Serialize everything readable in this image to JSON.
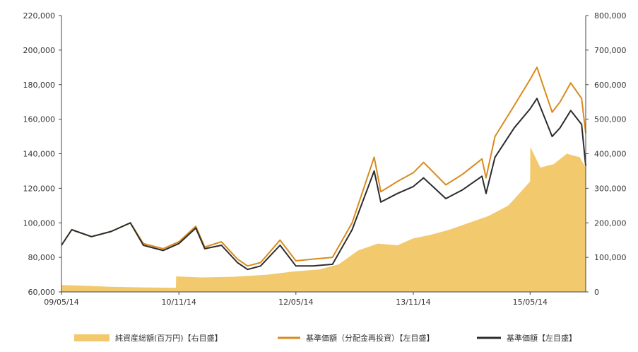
{
  "chart_data": {
    "type": "line",
    "x_tick_labels": [
      "09/05/14",
      "10/11/14",
      "12/05/14",
      "13/11/14",
      "15/05/14"
    ],
    "x_tick_dates": [
      "2009-05-14",
      "2010-11-14",
      "2012-05-14",
      "2013-11-14",
      "2015-05-14"
    ],
    "x_range": [
      "2009-05-14",
      "2016-01-29"
    ],
    "y_left_range": [
      60000,
      220000
    ],
    "y_left_ticks": [
      "60,000",
      "80,000",
      "100,000",
      "120,000",
      "140,000",
      "160,000",
      "180,000",
      "200,000",
      "220,000"
    ],
    "y_right_range": [
      0,
      800000
    ],
    "y_right_ticks": [
      "0",
      "100,000",
      "200,000",
      "300,000",
      "400,000",
      "500,000",
      "600,000",
      "700,000",
      "800,000"
    ],
    "grid": false,
    "legend_position": "bottom",
    "series": [
      {
        "name": "純資産総額(百万円)【右目盛】",
        "type": "area",
        "axis": "right",
        "color": "#f3c96e",
        "points": [
          [
            "2009-05-14",
            20000
          ],
          [
            "2009-09-01",
            18000
          ],
          [
            "2010-01-01",
            15000
          ],
          [
            "2010-06-01",
            13000
          ],
          [
            "2010-10-31",
            12000
          ],
          [
            "2010-11-01",
            45000
          ],
          [
            "2011-03-01",
            42000
          ],
          [
            "2011-08-01",
            44000
          ],
          [
            "2012-01-01",
            50000
          ],
          [
            "2012-05-14",
            60000
          ],
          [
            "2012-09-01",
            65000
          ],
          [
            "2012-12-01",
            80000
          ],
          [
            "2013-03-01",
            120000
          ],
          [
            "2013-06-01",
            140000
          ],
          [
            "2013-09-01",
            135000
          ],
          [
            "2013-11-14",
            155000
          ],
          [
            "2014-02-01",
            165000
          ],
          [
            "2014-05-01",
            180000
          ],
          [
            "2014-08-01",
            200000
          ],
          [
            "2014-11-01",
            220000
          ],
          [
            "2015-02-01",
            250000
          ],
          [
            "2015-04-01",
            290000
          ],
          [
            "2015-05-14",
            320000
          ],
          [
            "2015-05-15",
            420000
          ],
          [
            "2015-07-01",
            360000
          ],
          [
            "2015-09-01",
            370000
          ],
          [
            "2015-11-01",
            400000
          ],
          [
            "2016-01-01",
            390000
          ],
          [
            "2016-01-29",
            360000
          ]
        ]
      },
      {
        "name": "基準価額（分配金再投資）【左目盛】",
        "type": "line",
        "axis": "left",
        "color": "#d98a1c",
        "points": [
          [
            "2009-05-14",
            87000
          ],
          [
            "2009-07-01",
            96000
          ],
          [
            "2009-10-01",
            92000
          ],
          [
            "2010-01-01",
            95000
          ],
          [
            "2010-04-01",
            100000
          ],
          [
            "2010-06-01",
            88000
          ],
          [
            "2010-09-01",
            85000
          ],
          [
            "2010-11-14",
            89000
          ],
          [
            "2011-02-01",
            98000
          ],
          [
            "2011-03-15",
            86000
          ],
          [
            "2011-06-01",
            89000
          ],
          [
            "2011-08-15",
            79000
          ],
          [
            "2011-10-01",
            75000
          ],
          [
            "2011-12-01",
            77000
          ],
          [
            "2012-03-01",
            90000
          ],
          [
            "2012-05-14",
            78000
          ],
          [
            "2012-08-01",
            79000
          ],
          [
            "2012-11-01",
            80000
          ],
          [
            "2013-02-01",
            100000
          ],
          [
            "2013-05-15",
            138000
          ],
          [
            "2013-06-15",
            118000
          ],
          [
            "2013-09-01",
            124000
          ],
          [
            "2013-11-14",
            129000
          ],
          [
            "2014-01-01",
            135000
          ],
          [
            "2014-04-15",
            122000
          ],
          [
            "2014-07-01",
            128000
          ],
          [
            "2014-10-01",
            137000
          ],
          [
            "2014-10-20",
            126000
          ],
          [
            "2014-12-01",
            150000
          ],
          [
            "2015-03-01",
            168000
          ],
          [
            "2015-05-14",
            183000
          ],
          [
            "2015-06-15",
            190000
          ],
          [
            "2015-08-25",
            164000
          ],
          [
            "2015-10-01",
            170000
          ],
          [
            "2015-11-20",
            181000
          ],
          [
            "2016-01-10",
            172000
          ],
          [
            "2016-01-29",
            152000
          ]
        ]
      },
      {
        "name": "基準価額【左目盛】",
        "type": "line",
        "axis": "left",
        "color": "#2c2c2c",
        "points": [
          [
            "2009-05-14",
            87000
          ],
          [
            "2009-07-01",
            96000
          ],
          [
            "2009-10-01",
            92000
          ],
          [
            "2010-01-01",
            95000
          ],
          [
            "2010-04-01",
            100000
          ],
          [
            "2010-06-01",
            87000
          ],
          [
            "2010-09-01",
            84000
          ],
          [
            "2010-11-14",
            88000
          ],
          [
            "2011-02-01",
            97000
          ],
          [
            "2011-03-15",
            85000
          ],
          [
            "2011-06-01",
            87000
          ],
          [
            "2011-08-15",
            77000
          ],
          [
            "2011-10-01",
            73000
          ],
          [
            "2011-12-01",
            75000
          ],
          [
            "2012-03-01",
            87000
          ],
          [
            "2012-05-14",
            75000
          ],
          [
            "2012-08-01",
            75000
          ],
          [
            "2012-11-01",
            76000
          ],
          [
            "2013-02-01",
            96000
          ],
          [
            "2013-05-15",
            130000
          ],
          [
            "2013-06-15",
            112000
          ],
          [
            "2013-09-01",
            117000
          ],
          [
            "2013-11-14",
            121000
          ],
          [
            "2014-01-01",
            126000
          ],
          [
            "2014-04-15",
            114000
          ],
          [
            "2014-07-01",
            119000
          ],
          [
            "2014-10-01",
            127000
          ],
          [
            "2014-10-20",
            117000
          ],
          [
            "2014-12-01",
            138000
          ],
          [
            "2015-03-01",
            155000
          ],
          [
            "2015-05-14",
            166000
          ],
          [
            "2015-06-15",
            172000
          ],
          [
            "2015-08-25",
            150000
          ],
          [
            "2015-10-01",
            155000
          ],
          [
            "2015-11-20",
            165000
          ],
          [
            "2016-01-10",
            157000
          ],
          [
            "2016-01-29",
            133000
          ]
        ]
      }
    ]
  }
}
